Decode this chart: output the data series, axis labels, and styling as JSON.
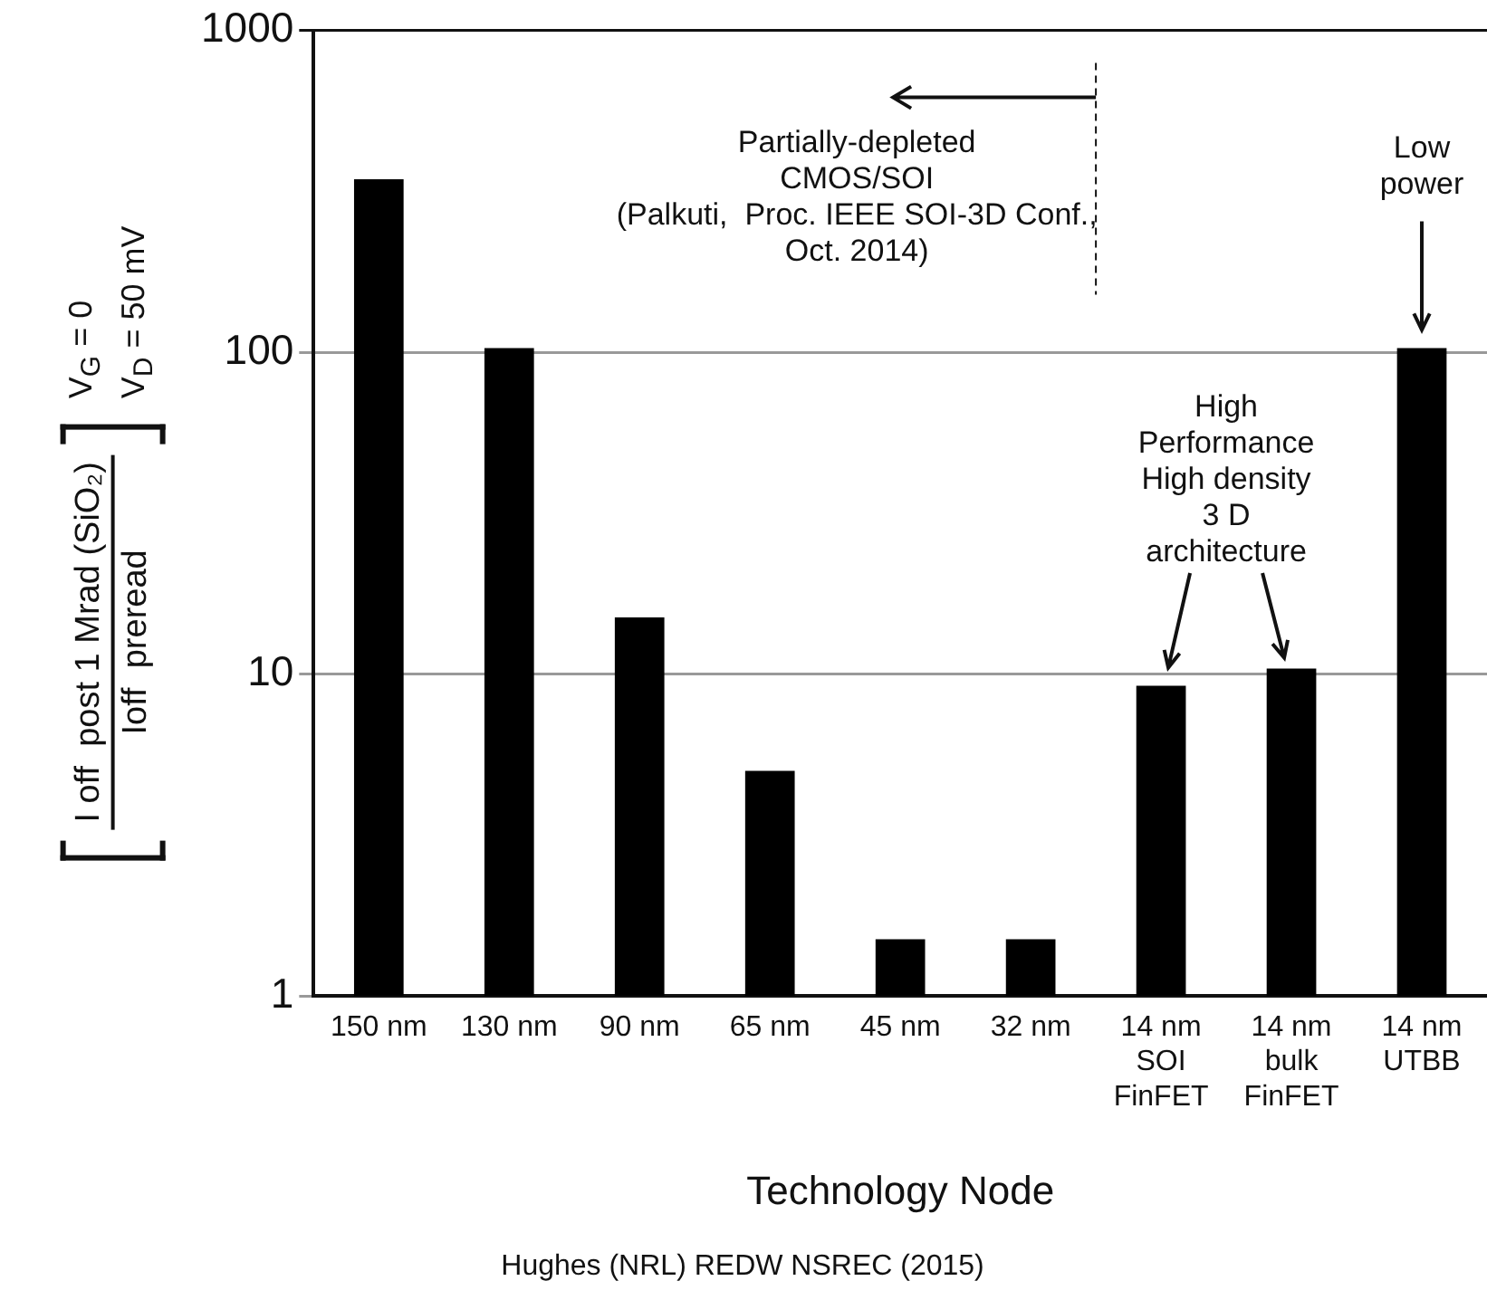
{
  "chart_data": {
    "type": "bar",
    "xlabel": "Technology Node",
    "ylabel": "I off  post 1 Mrad (SiO₂)\nIoff  preread",
    "categories": [
      "150 nm",
      "130 nm",
      "90 nm",
      "65 nm",
      "45 nm",
      "32 nm",
      "14 nm\nSOI\nFinFET",
      "14 nm\nbulk\nFinFET",
      "14 nm\nUTBB"
    ],
    "values": [
      345,
      103,
      15,
      5,
      1.5,
      1.5,
      9.2,
      10.4,
      103
    ],
    "color": "#000000",
    "log": "y",
    "ylim": [
      1,
      1000
    ],
    "yticks": [
      1,
      10,
      100,
      1000
    ],
    "grid": "y",
    "annotations": [
      "V$_{G}$ = 0\nV$_{D}$ = 50 mV",
      "Partially-depleted\nCMOS/SOI\n(Palkuti,  Proc. IEEE SOI-3D Conf.,\nOct. 2014)",
      "Low\npower",
      "High\nPerformance\nHigh density\n3 D\narchitecture",
      "Hughes (NRL) REDW NSREC (2015)"
    ]
  }
}
